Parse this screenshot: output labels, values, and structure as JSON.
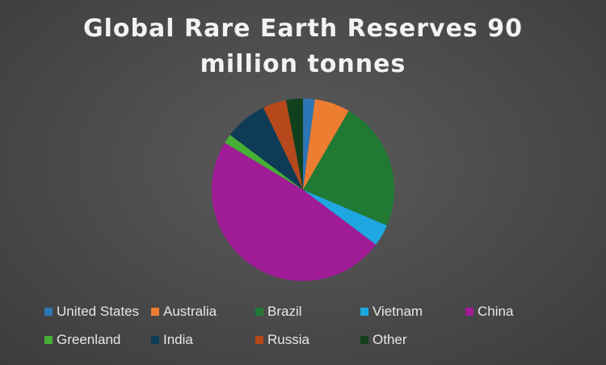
{
  "chart_data": {
    "type": "pie",
    "title_lines": [
      "Global Rare Earth Reserves 90",
      "million tonnes"
    ],
    "categories": [
      "United States",
      "Australia",
      "Brazil",
      "Vietnam",
      "China",
      "Greenland",
      "India",
      "Russia",
      "Other"
    ],
    "values": [
      1.9,
      5.7,
      21,
      3.5,
      44,
      1.5,
      6.9,
      3.8,
      2.7
    ],
    "colors": [
      "#2e75b6",
      "#ed7d31",
      "#217a33",
      "#1ea7e0",
      "#a01c96",
      "#45b035",
      "#0e3c57",
      "#b5491b",
      "#12401c"
    ],
    "legend_position": "bottom"
  }
}
